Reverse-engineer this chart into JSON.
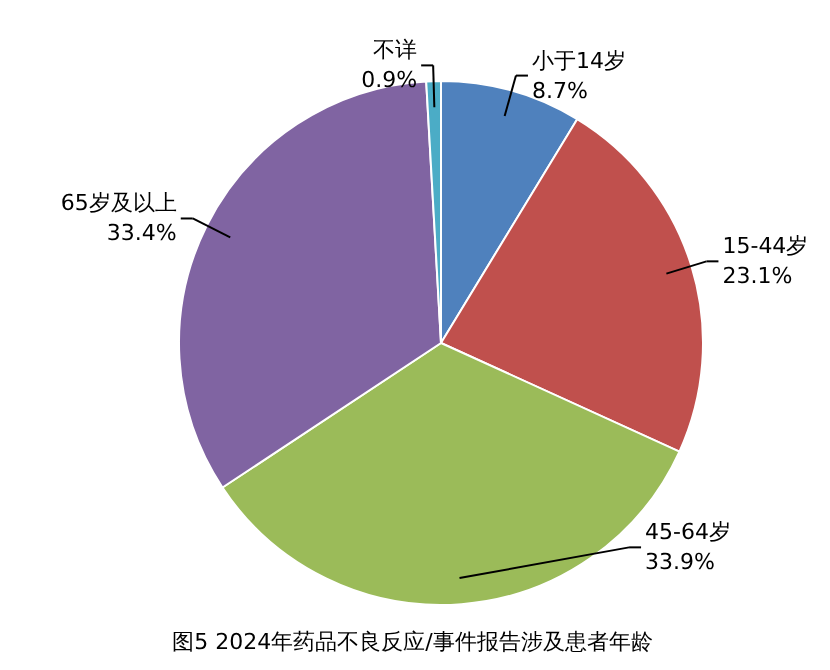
{
  "chart_data": {
    "type": "pie",
    "title": "图5  2024年药品不良反应/事件报告涉及患者年龄",
    "categories": [
      "小于14岁",
      "15-44岁",
      "45-64岁",
      "65岁及以上",
      "不详"
    ],
    "values": [
      8.7,
      23.1,
      33.9,
      33.4,
      0.9
    ],
    "value_labels": [
      "8.7%",
      "23.1%",
      "33.9%",
      "33.4%",
      "0.9%"
    ],
    "colors": [
      "#4f81bd",
      "#c0504d",
      "#9bbb59",
      "#8064a2",
      "#4bacc6"
    ]
  }
}
